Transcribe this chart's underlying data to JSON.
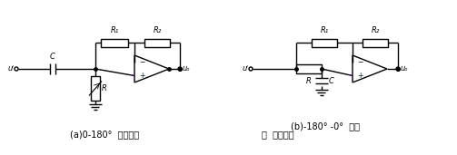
{
  "fig_width": 5.03,
  "fig_height": 1.71,
  "dpi": 100,
  "bg_color": "#ffffff",
  "line_color": "#000000",
  "blue_color": "#0000cd",
  "label_a": "(a)0-180°  移相电路",
  "label_b": "(b)-180° -0°  移相",
  "label_bottom": "图  移相电路",
  "R1_label": "R₁",
  "R2_label": "R₂",
  "C_label": "C",
  "R_label": "R",
  "ui_label": "uᴵ",
  "uo_label": "uₒ",
  "minus_label": "−",
  "plus_label": "+"
}
